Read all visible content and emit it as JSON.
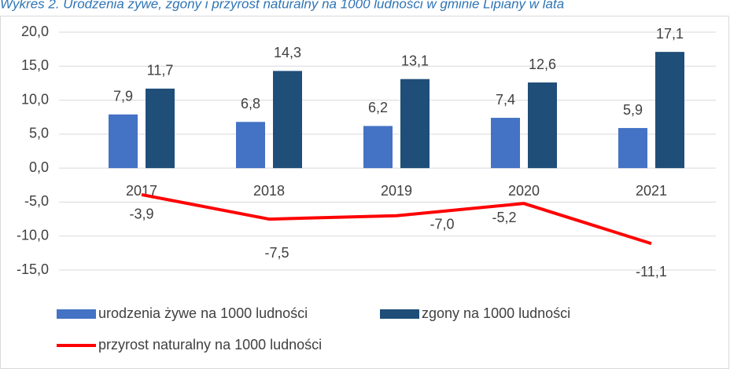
{
  "chart_data": {
    "type": "bar",
    "title": "Wykres 2. Urodzenia żywe, zgony i przyrost naturalny na 1000 ludności w gminie Lipiany w lata",
    "categories": [
      "2017",
      "2018",
      "2019",
      "2020",
      "2021"
    ],
    "series": [
      {
        "name": "urodzenia żywe na 1000 ludności",
        "type": "bar",
        "color": "#4472c4",
        "values": [
          7.9,
          6.8,
          6.2,
          7.4,
          5.9
        ],
        "value_labels": [
          "7,9",
          "6,8",
          "6,2",
          "7,4",
          "5,9"
        ]
      },
      {
        "name": "zgony na 1000 ludności",
        "type": "bar",
        "color": "#1f4e79",
        "values": [
          11.7,
          14.3,
          13.1,
          12.6,
          17.1
        ],
        "value_labels": [
          "11,7",
          "14,3",
          "13,1",
          "12,6",
          "17,1"
        ]
      },
      {
        "name": "przyrost naturalny na 1000 ludności",
        "type": "line",
        "color": "#ff0000",
        "values": [
          -3.9,
          -7.5,
          -7.0,
          -5.2,
          -11.1
        ],
        "value_labels": [
          "-3,9",
          "-7,5",
          "-7,0",
          "-5,2",
          "-11,1"
        ]
      }
    ],
    "ylim": [
      -15,
      20
    ],
    "yticks": [
      {
        "value": -15,
        "label": "-15,0"
      },
      {
        "value": -10,
        "label": "-10,0"
      },
      {
        "value": -5,
        "label": "-5,0"
      },
      {
        "value": 0,
        "label": "0,0"
      },
      {
        "value": 5,
        "label": "5,0"
      },
      {
        "value": 10,
        "label": "10,0"
      },
      {
        "value": 15,
        "label": "15,0"
      },
      {
        "value": 20,
        "label": "20,0"
      }
    ],
    "grid": true,
    "legend": "bottom"
  }
}
